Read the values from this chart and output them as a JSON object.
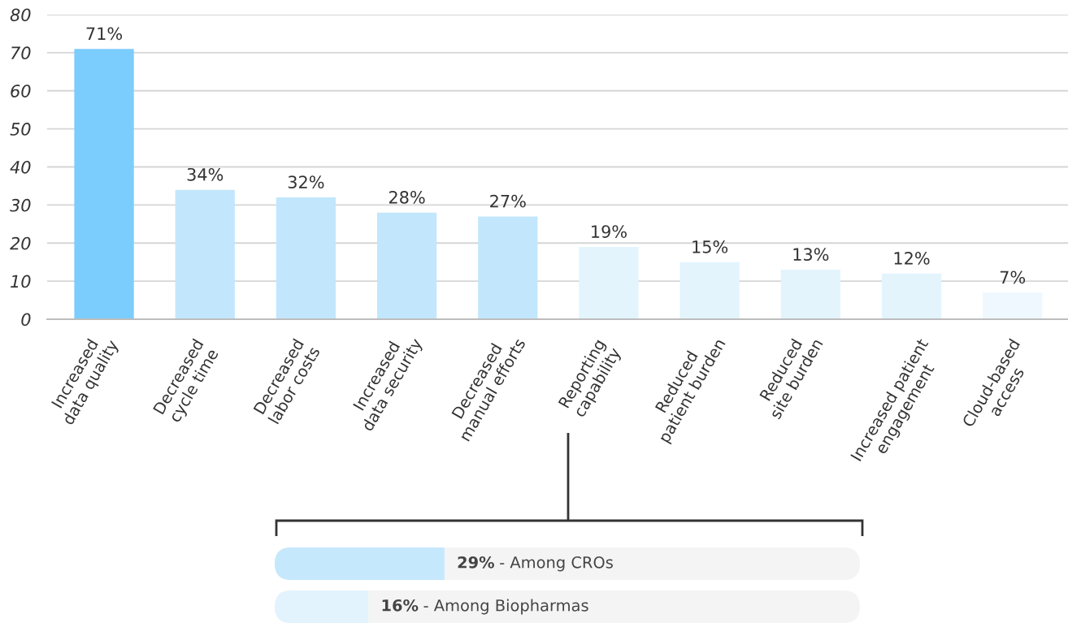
{
  "chart_data": [
    {
      "type": "bar",
      "categories": [
        "Increased\ndata quality",
        "Decreased\ncycle time",
        "Decreased\nlabor costs",
        "Increased\ndata security",
        "Decreased\nmanual efforts",
        "Reporting\ncapability",
        "Reduced\npatient burden",
        "Reduced\nsite burden",
        "Increased patient\nengagement",
        "Cloud-based\naccess"
      ],
      "values": [
        71,
        34,
        32,
        28,
        27,
        19,
        15,
        13,
        12,
        7
      ],
      "colors": [
        "#7bcdfd",
        "#c2e7fc",
        "#c2e7fc",
        "#c2e7fc",
        "#c2e7fc",
        "#e3f4fd",
        "#e3f4fd",
        "#e3f4fd",
        "#e3f4fd",
        "#eef8fe"
      ],
      "value_labels": [
        "71%",
        "34%",
        "32%",
        "28%",
        "27%",
        "19%",
        "15%",
        "13%",
        "12%",
        "7%"
      ],
      "ylim": [
        0,
        80
      ],
      "yticks": [
        0,
        10,
        20,
        30,
        40,
        50,
        60,
        70,
        80
      ],
      "grid": "y"
    },
    {
      "type": "bar",
      "orientation": "horizontal",
      "categories": [
        "- Among CROs",
        "- Among Biopharmas"
      ],
      "values": [
        29,
        16
      ],
      "colors": [
        "#c5e8fc",
        "#e3f3fd"
      ],
      "value_labels": [
        "29%",
        "16%"
      ],
      "xlim": [
        0,
        100
      ],
      "tick_labels": false
    }
  ]
}
